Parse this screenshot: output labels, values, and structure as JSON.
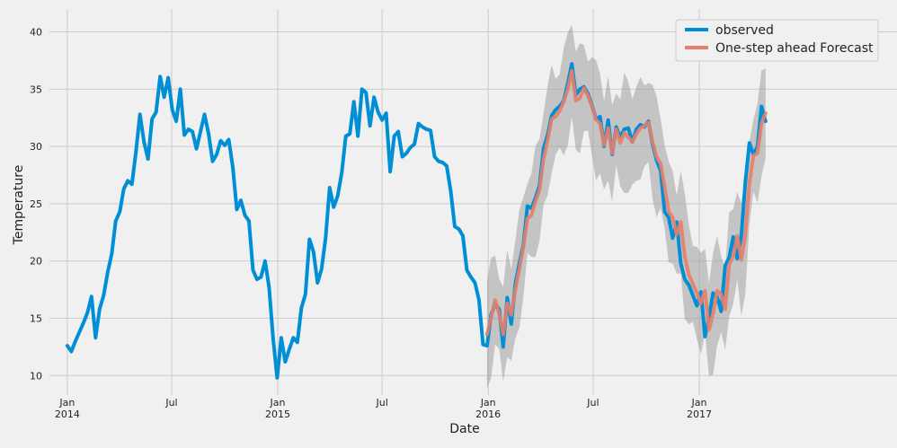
{
  "chart_data": {
    "type": "line",
    "title": "",
    "xlabel": "Date",
    "ylabel": "Temperature",
    "ylim": [
      8.3,
      42
    ],
    "xlim": [
      "2013-12-01",
      "2017-12-10"
    ],
    "grid": true,
    "legend_position": "top-right",
    "y_ticks": [
      10,
      15,
      20,
      25,
      30,
      35,
      40
    ],
    "x_ticks": [
      {
        "date": "2014-01-01",
        "label": "Jan",
        "sublabel": "2014"
      },
      {
        "date": "2014-07-01",
        "label": "Jul",
        "sublabel": ""
      },
      {
        "date": "2015-01-01",
        "label": "Jan",
        "sublabel": "2015"
      },
      {
        "date": "2015-07-01",
        "label": "Jul",
        "sublabel": ""
      },
      {
        "date": "2016-01-01",
        "label": "Jan",
        "sublabel": "2016"
      },
      {
        "date": "2016-07-01",
        "label": "Jul",
        "sublabel": ""
      },
      {
        "date": "2017-01-01",
        "label": "Jan",
        "sublabel": "2017"
      }
    ],
    "series": [
      {
        "name": "observed",
        "color": "#008fd5",
        "points": [
          [
            "2014-01-01",
            12.6
          ],
          [
            "2014-01-08",
            12.1
          ],
          [
            "2014-01-15",
            13.0
          ],
          [
            "2014-01-22",
            13.8
          ],
          [
            "2014-01-29",
            14.6
          ],
          [
            "2014-02-05",
            15.5
          ],
          [
            "2014-02-12",
            16.9
          ],
          [
            "2014-02-19",
            13.3
          ],
          [
            "2014-02-26",
            15.8
          ],
          [
            "2014-03-05",
            17.0
          ],
          [
            "2014-03-12",
            19.0
          ],
          [
            "2014-03-19",
            20.6
          ],
          [
            "2014-03-26",
            23.5
          ],
          [
            "2014-04-02",
            24.3
          ],
          [
            "2014-04-09",
            26.3
          ],
          [
            "2014-04-16",
            27.0
          ],
          [
            "2014-04-23",
            26.7
          ],
          [
            "2014-04-30",
            29.5
          ],
          [
            "2014-05-07",
            32.8
          ],
          [
            "2014-05-14",
            30.4
          ],
          [
            "2014-05-21",
            28.9
          ],
          [
            "2014-05-28",
            32.4
          ],
          [
            "2014-06-04",
            33.0
          ],
          [
            "2014-06-11",
            36.1
          ],
          [
            "2014-06-18",
            34.3
          ],
          [
            "2014-06-25",
            36.0
          ],
          [
            "2014-07-02",
            33.2
          ],
          [
            "2014-07-09",
            32.2
          ],
          [
            "2014-07-16",
            35.0
          ],
          [
            "2014-07-23",
            31.0
          ],
          [
            "2014-07-30",
            31.5
          ],
          [
            "2014-08-06",
            31.3
          ],
          [
            "2014-08-13",
            29.8
          ],
          [
            "2014-08-20",
            31.3
          ],
          [
            "2014-08-27",
            32.8
          ],
          [
            "2014-09-03",
            31.1
          ],
          [
            "2014-09-10",
            28.7
          ],
          [
            "2014-09-17",
            29.3
          ],
          [
            "2014-09-24",
            30.5
          ],
          [
            "2014-10-01",
            30.1
          ],
          [
            "2014-10-08",
            30.6
          ],
          [
            "2014-10-15",
            28.2
          ],
          [
            "2014-10-22",
            24.5
          ],
          [
            "2014-10-29",
            25.3
          ],
          [
            "2014-11-05",
            24.0
          ],
          [
            "2014-11-12",
            23.5
          ],
          [
            "2014-11-19",
            19.2
          ],
          [
            "2014-11-26",
            18.4
          ],
          [
            "2014-12-03",
            18.6
          ],
          [
            "2014-12-10",
            20.0
          ],
          [
            "2014-12-17",
            17.7
          ],
          [
            "2014-12-24",
            13.2
          ],
          [
            "2014-12-31",
            9.8
          ],
          [
            "2015-01-07",
            13.3
          ],
          [
            "2015-01-14",
            11.2
          ],
          [
            "2015-01-21",
            12.3
          ],
          [
            "2015-01-28",
            13.3
          ],
          [
            "2015-02-04",
            12.9
          ],
          [
            "2015-02-11",
            15.9
          ],
          [
            "2015-02-18",
            17.1
          ],
          [
            "2015-02-25",
            21.9
          ],
          [
            "2015-03-04",
            20.8
          ],
          [
            "2015-03-11",
            18.1
          ],
          [
            "2015-03-18",
            19.3
          ],
          [
            "2015-03-25",
            22.0
          ],
          [
            "2015-04-01",
            26.4
          ],
          [
            "2015-04-08",
            24.7
          ],
          [
            "2015-04-15",
            25.7
          ],
          [
            "2015-04-22",
            27.7
          ],
          [
            "2015-04-29",
            30.9
          ],
          [
            "2015-05-06",
            31.1
          ],
          [
            "2015-05-13",
            33.9
          ],
          [
            "2015-05-20",
            30.9
          ],
          [
            "2015-05-27",
            35.0
          ],
          [
            "2015-06-03",
            34.7
          ],
          [
            "2015-06-10",
            31.8
          ],
          [
            "2015-06-17",
            34.3
          ],
          [
            "2015-06-24",
            33.0
          ],
          [
            "2015-07-01",
            32.3
          ],
          [
            "2015-07-08",
            32.9
          ],
          [
            "2015-07-15",
            27.8
          ],
          [
            "2015-07-22",
            30.9
          ],
          [
            "2015-07-29",
            31.3
          ],
          [
            "2015-08-05",
            29.1
          ],
          [
            "2015-08-12",
            29.4
          ],
          [
            "2015-08-19",
            29.9
          ],
          [
            "2015-08-26",
            30.2
          ],
          [
            "2015-09-02",
            32.0
          ],
          [
            "2015-09-09",
            31.7
          ],
          [
            "2015-09-16",
            31.5
          ],
          [
            "2015-09-23",
            31.4
          ],
          [
            "2015-09-30",
            29.1
          ],
          [
            "2015-10-07",
            28.7
          ],
          [
            "2015-10-14",
            28.6
          ],
          [
            "2015-10-21",
            28.3
          ],
          [
            "2015-10-28",
            26.1
          ],
          [
            "2015-11-04",
            23.0
          ],
          [
            "2015-11-11",
            22.8
          ],
          [
            "2015-11-18",
            22.2
          ],
          [
            "2015-11-25",
            19.2
          ],
          [
            "2015-12-02",
            18.6
          ],
          [
            "2015-12-09",
            18.1
          ],
          [
            "2015-12-16",
            16.6
          ],
          [
            "2015-12-23",
            12.7
          ],
          [
            "2015-12-30",
            12.6
          ],
          [
            "2016-01-06",
            15.3
          ],
          [
            "2016-01-13",
            16.2
          ],
          [
            "2016-01-20",
            15.8
          ],
          [
            "2016-01-27",
            12.5
          ],
          [
            "2016-02-03",
            16.8
          ],
          [
            "2016-02-10",
            14.5
          ],
          [
            "2016-02-17",
            18.0
          ],
          [
            "2016-02-24",
            19.8
          ],
          [
            "2016-03-02",
            21.4
          ],
          [
            "2016-03-09",
            24.8
          ],
          [
            "2016-03-16",
            24.6
          ],
          [
            "2016-03-23",
            25.5
          ],
          [
            "2016-03-30",
            26.6
          ],
          [
            "2016-04-06",
            29.8
          ],
          [
            "2016-04-13",
            31.0
          ],
          [
            "2016-04-20",
            32.7
          ],
          [
            "2016-04-27",
            33.2
          ],
          [
            "2016-05-04",
            33.5
          ],
          [
            "2016-05-11",
            34.0
          ],
          [
            "2016-05-18",
            35.5
          ],
          [
            "2016-05-25",
            37.2
          ],
          [
            "2016-06-01",
            34.5
          ],
          [
            "2016-06-08",
            35.0
          ],
          [
            "2016-06-15",
            35.2
          ],
          [
            "2016-06-22",
            34.6
          ],
          [
            "2016-06-29",
            33.6
          ],
          [
            "2016-07-06",
            32.4
          ],
          [
            "2016-07-13",
            32.6
          ],
          [
            "2016-07-20",
            30.0
          ],
          [
            "2016-07-27",
            32.3
          ],
          [
            "2016-08-03",
            29.3
          ],
          [
            "2016-08-10",
            31.7
          ],
          [
            "2016-08-17",
            30.8
          ],
          [
            "2016-08-24",
            31.5
          ],
          [
            "2016-08-31",
            31.6
          ],
          [
            "2016-09-07",
            30.4
          ],
          [
            "2016-09-14",
            31.5
          ],
          [
            "2016-09-21",
            31.9
          ],
          [
            "2016-09-28",
            31.7
          ],
          [
            "2016-10-05",
            32.2
          ],
          [
            "2016-10-12",
            30.2
          ],
          [
            "2016-10-19",
            28.8
          ],
          [
            "2016-10-26",
            27.9
          ],
          [
            "2016-11-02",
            24.3
          ],
          [
            "2016-11-09",
            23.8
          ],
          [
            "2016-11-16",
            22.0
          ],
          [
            "2016-11-23",
            23.4
          ],
          [
            "2016-11-30",
            19.8
          ],
          [
            "2016-12-07",
            18.4
          ],
          [
            "2016-12-14",
            17.9
          ],
          [
            "2016-12-21",
            17.0
          ],
          [
            "2016-12-28",
            16.1
          ],
          [
            "2017-01-04",
            17.3
          ],
          [
            "2017-01-11",
            13.4
          ],
          [
            "2017-01-18",
            15.1
          ],
          [
            "2017-01-25",
            17.2
          ],
          [
            "2017-02-01",
            16.9
          ],
          [
            "2017-02-08",
            15.6
          ],
          [
            "2017-02-15",
            19.6
          ],
          [
            "2017-02-22",
            20.3
          ],
          [
            "2017-03-01",
            22.1
          ],
          [
            "2017-03-08",
            20.2
          ],
          [
            "2017-03-15",
            22.2
          ],
          [
            "2017-03-22",
            26.9
          ],
          [
            "2017-03-29",
            30.3
          ],
          [
            "2017-04-05",
            29.3
          ],
          [
            "2017-04-12",
            30.0
          ],
          [
            "2017-04-19",
            33.5
          ],
          [
            "2017-04-26",
            32.2
          ]
        ]
      },
      {
        "name": "One-step ahead Forecast",
        "color": "#e5806b",
        "points": [
          [
            "2015-12-30",
            13.6
          ],
          [
            "2016-01-06",
            15.0
          ],
          [
            "2016-01-13",
            16.6
          ],
          [
            "2016-01-20",
            15.4
          ],
          [
            "2016-01-27",
            13.6
          ],
          [
            "2016-02-03",
            16.3
          ],
          [
            "2016-02-10",
            15.3
          ],
          [
            "2016-02-17",
            17.5
          ],
          [
            "2016-02-24",
            19.3
          ],
          [
            "2016-03-02",
            21.2
          ],
          [
            "2016-03-09",
            23.7
          ],
          [
            "2016-03-16",
            24.0
          ],
          [
            "2016-03-23",
            25.2
          ],
          [
            "2016-03-30",
            26.2
          ],
          [
            "2016-04-06",
            28.9
          ],
          [
            "2016-04-13",
            30.5
          ],
          [
            "2016-04-20",
            32.4
          ],
          [
            "2016-04-27",
            32.6
          ],
          [
            "2016-05-04",
            33.1
          ],
          [
            "2016-05-11",
            33.9
          ],
          [
            "2016-05-18",
            35.0
          ],
          [
            "2016-05-25",
            36.6
          ],
          [
            "2016-06-01",
            34.0
          ],
          [
            "2016-06-08",
            34.2
          ],
          [
            "2016-06-15",
            35.1
          ],
          [
            "2016-06-22",
            34.4
          ],
          [
            "2016-06-29",
            33.5
          ],
          [
            "2016-07-06",
            32.3
          ],
          [
            "2016-07-13",
            32.0
          ],
          [
            "2016-07-20",
            30.1
          ],
          [
            "2016-07-27",
            31.6
          ],
          [
            "2016-08-03",
            29.4
          ],
          [
            "2016-08-10",
            31.5
          ],
          [
            "2016-08-17",
            30.3
          ],
          [
            "2016-08-24",
            31.2
          ],
          [
            "2016-08-31",
            30.8
          ],
          [
            "2016-09-07",
            30.4
          ],
          [
            "2016-09-14",
            31.1
          ],
          [
            "2016-09-21",
            31.6
          ],
          [
            "2016-09-28",
            31.8
          ],
          [
            "2016-10-05",
            32.1
          ],
          [
            "2016-10-12",
            30.4
          ],
          [
            "2016-10-19",
            29.1
          ],
          [
            "2016-10-26",
            28.5
          ],
          [
            "2016-11-02",
            26.5
          ],
          [
            "2016-11-09",
            24.3
          ],
          [
            "2016-11-16",
            23.8
          ],
          [
            "2016-11-23",
            22.3
          ],
          [
            "2016-11-30",
            23.4
          ],
          [
            "2016-12-07",
            20.4
          ],
          [
            "2016-12-14",
            18.8
          ],
          [
            "2016-12-21",
            18.0
          ],
          [
            "2016-12-28",
            17.2
          ],
          [
            "2017-01-04",
            16.3
          ],
          [
            "2017-01-11",
            17.4
          ],
          [
            "2017-01-18",
            14.0
          ],
          [
            "2017-01-25",
            15.4
          ],
          [
            "2017-02-01",
            17.4
          ],
          [
            "2017-02-08",
            17.1
          ],
          [
            "2017-02-15",
            15.8
          ],
          [
            "2017-02-22",
            19.7
          ],
          [
            "2017-03-01",
            20.4
          ],
          [
            "2017-03-08",
            22.2
          ],
          [
            "2017-03-15",
            20.1
          ],
          [
            "2017-03-22",
            22.3
          ],
          [
            "2017-03-29",
            26.8
          ],
          [
            "2017-04-05",
            29.2
          ],
          [
            "2017-04-12",
            29.4
          ],
          [
            "2017-04-19",
            32.0
          ],
          [
            "2017-04-26",
            32.9
          ]
        ],
        "confidence_band": {
          "color": "#a0a0a0",
          "half_width": 4.2
        }
      }
    ]
  }
}
